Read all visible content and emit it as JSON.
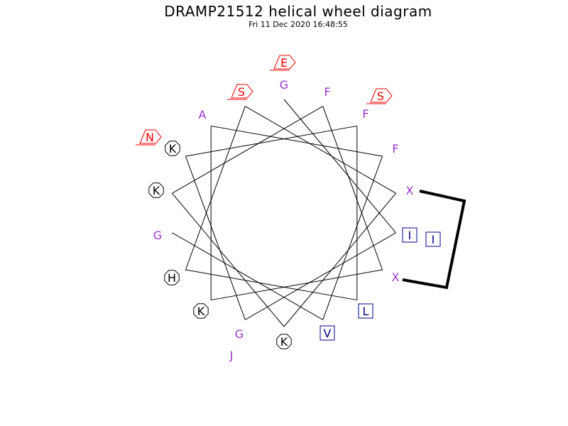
{
  "title": "DRAMP21512 helical wheel diagram",
  "timestamp": "Fri 11 Dec 2020 16:48:55",
  "colors": {
    "hydrophobic": "#00008b",
    "charged_positive": "#000000",
    "charged_negative": "#ff0000",
    "polar": "#ff0000",
    "other": "#9933cc",
    "wheel": "#000000"
  },
  "residues": [
    {
      "letter": "G",
      "style": "plain",
      "color": "other"
    },
    {
      "letter": "F",
      "style": "plain",
      "color": "other"
    },
    {
      "letter": "F",
      "style": "plain",
      "color": "other"
    },
    {
      "letter": "F",
      "style": "plain",
      "color": "other"
    },
    {
      "letter": "X",
      "style": "plain",
      "color": "other"
    },
    {
      "letter": "I",
      "style": "square",
      "color": "hydrophobic"
    },
    {
      "letter": "X",
      "style": "plain",
      "color": "other"
    },
    {
      "letter": "L",
      "style": "square",
      "color": "hydrophobic"
    },
    {
      "letter": "V",
      "style": "square",
      "color": "hydrophobic"
    },
    {
      "letter": "K",
      "style": "octagon",
      "color": "charged_positive"
    },
    {
      "letter": "G",
      "style": "plain",
      "color": "other"
    },
    {
      "letter": "K",
      "style": "octagon",
      "color": "charged_positive"
    },
    {
      "letter": "H",
      "style": "octagon",
      "color": "charged_positive"
    },
    {
      "letter": "G",
      "style": "plain",
      "color": "other"
    },
    {
      "letter": "K",
      "style": "octagon",
      "color": "charged_positive"
    },
    {
      "letter": "K",
      "style": "octagon",
      "color": "charged_positive"
    },
    {
      "letter": "A",
      "style": "plain",
      "color": "other"
    },
    {
      "letter": "S",
      "style": "pentagon",
      "color": "polar"
    }
  ],
  "outer_residues": [
    {
      "letter": "E",
      "style": "pentagon",
      "color": "charged_negative"
    },
    {
      "letter": "S",
      "style": "pentagon",
      "color": "polar"
    },
    {
      "letter": "I",
      "style": "square",
      "color": "hydrophobic"
    },
    {
      "letter": "J",
      "style": "plain",
      "color": "other"
    },
    {
      "letter": "N",
      "style": "pentagon",
      "color": "polar"
    }
  ]
}
